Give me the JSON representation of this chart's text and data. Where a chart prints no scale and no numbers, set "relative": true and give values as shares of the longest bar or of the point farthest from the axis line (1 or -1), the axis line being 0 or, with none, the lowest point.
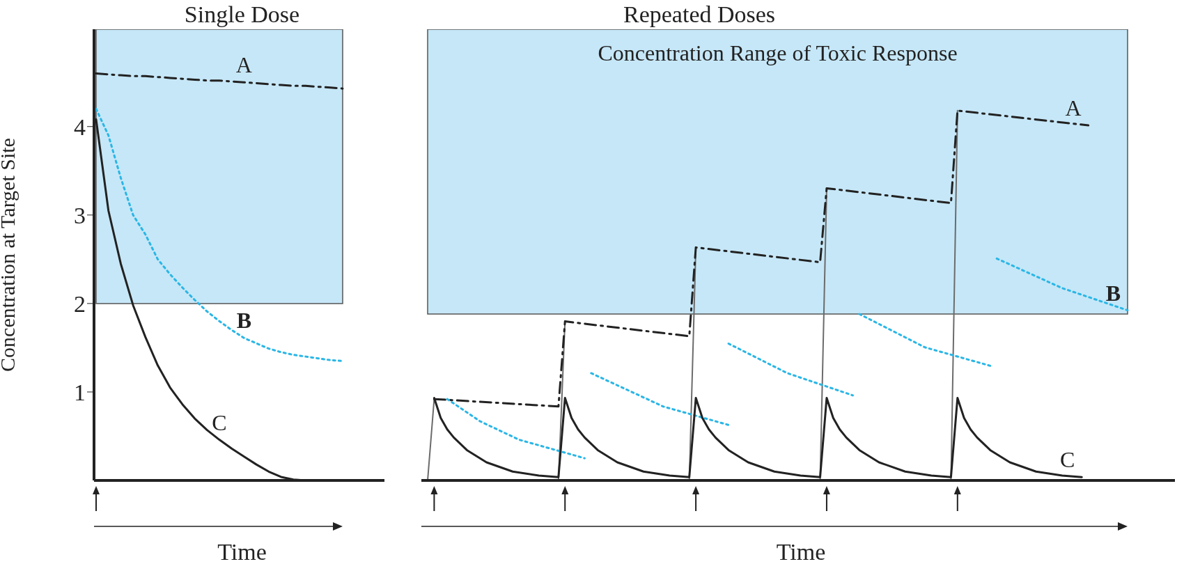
{
  "chart_data": [
    {
      "type": "line",
      "title": "Single Dose",
      "xlabel": "Time",
      "ylabel": "Concentration at Target Site",
      "ylim": [
        0,
        5.1
      ],
      "yticks": [
        1,
        2,
        3,
        4
      ],
      "tick_labels": "y",
      "categories": [
        null,
        null,
        null,
        null,
        null,
        null,
        null,
        null,
        null,
        null,
        null,
        null,
        null,
        null,
        null,
        null,
        null,
        null,
        null,
        null,
        null
      ],
      "bands": [
        {
          "axis": "y",
          "from": 2,
          "to": 5.1,
          "color": "#c6e7f7"
        }
      ],
      "series": [
        {
          "name": "A",
          "color": "#222222",
          "line_style": "dashed",
          "values": [
            4.6,
            4.59,
            4.58,
            4.57,
            4.57,
            4.56,
            4.55,
            4.54,
            4.53,
            4.52,
            4.52,
            4.51,
            4.5,
            4.49,
            4.48,
            4.47,
            4.46,
            4.46,
            4.45,
            4.44,
            4.43
          ]
        },
        {
          "name": "B",
          "color": "#29b6e6",
          "line_style": "dotted",
          "values": [
            4.2,
            3.9,
            3.42,
            3.0,
            2.78,
            2.5,
            2.33,
            2.18,
            2.04,
            1.91,
            1.8,
            1.7,
            1.61,
            1.55,
            1.49,
            1.45,
            1.42,
            1.4,
            1.38,
            1.36,
            1.35
          ]
        },
        {
          "name": "C",
          "color": "#222222",
          "line_style": "solid",
          "values": [
            4.08,
            3.05,
            2.45,
            1.98,
            1.62,
            1.3,
            1.05,
            0.86,
            0.7,
            0.57,
            0.46,
            0.36,
            0.27,
            0.18,
            0.1,
            0.04,
            0.01,
            0,
            null,
            null,
            null
          ]
        }
      ]
    },
    {
      "type": "line",
      "title": "Repeated Doses",
      "xlabel": "Time",
      "relative": true,
      "tick_labels": false,
      "categories": [
        null,
        null,
        null,
        null,
        null,
        null,
        null,
        null,
        null,
        null,
        null,
        null,
        null,
        null,
        null,
        null,
        null,
        null,
        null,
        null,
        null,
        null,
        null,
        null,
        null,
        null,
        null,
        null,
        null,
        null,
        null,
        null,
        null,
        null,
        null,
        null,
        null,
        null,
        null,
        null,
        null,
        null,
        null,
        null,
        null,
        null,
        null,
        null,
        null,
        null,
        null,
        null,
        null,
        null,
        null,
        null,
        null,
        null,
        null,
        null,
        null,
        null,
        null,
        null,
        null,
        null,
        null,
        null,
        null,
        null,
        null,
        null,
        null,
        null,
        null,
        null,
        null,
        null,
        null,
        null,
        null,
        null,
        null,
        null,
        null,
        null,
        null,
        null,
        null,
        null,
        null,
        null,
        null,
        null,
        null,
        null,
        null,
        null,
        null,
        null,
        null,
        null,
        null,
        null,
        null,
        null,
        null,
        null
      ],
      "bands": [
        {
          "axis": "y",
          "from": 0.45,
          "to": 1.22,
          "color": "#c6e7f7",
          "label": "Concentration Range of Toxic Response"
        }
      ],
      "series": [
        {
          "color": "#6b6b6b",
          "line_style": "solid",
          "values": [
            0,
            0.22,
            null,
            null,
            null,
            null,
            null,
            null,
            null,
            null,
            null,
            null,
            null,
            null,
            null,
            null,
            null,
            null,
            null,
            null,
            null,
            null,
            null,
            null,
            null,
            null,
            null,
            null,
            null,
            null,
            null,
            null,
            null,
            null,
            null,
            null,
            null,
            null,
            null,
            null,
            null,
            null,
            null,
            null,
            null,
            null,
            null,
            null,
            null,
            null,
            null,
            null,
            null,
            null,
            null,
            null,
            null,
            null,
            null,
            null,
            null,
            null,
            null,
            null,
            null,
            null,
            null,
            null,
            null,
            null,
            null,
            null,
            null,
            null,
            null,
            null,
            null,
            null,
            null,
            null,
            null,
            null,
            null,
            null,
            null,
            null,
            null,
            null,
            null,
            null,
            null,
            null,
            null,
            null,
            null,
            null,
            null,
            null,
            null,
            null,
            null,
            null,
            null,
            null,
            null,
            null,
            null,
            null
          ]
        },
        {
          "color": "#6b6b6b",
          "line_style": "solid",
          "values": [
            null,
            null,
            null,
            null,
            null,
            null,
            null,
            null,
            null,
            null,
            null,
            null,
            null,
            null,
            null,
            null,
            null,
            null,
            null,
            null,
            0,
            0.43,
            null,
            null,
            null,
            null,
            null,
            null,
            null,
            null,
            null,
            null,
            null,
            null,
            null,
            null,
            null,
            null,
            null,
            null,
            null,
            null,
            null,
            null,
            null,
            null,
            null,
            null,
            null,
            null,
            null,
            null,
            null,
            null,
            null,
            null,
            null,
            null,
            null,
            null,
            null,
            null,
            null,
            null,
            null,
            null,
            null,
            null,
            null,
            null,
            null,
            null,
            null,
            null,
            null,
            null,
            null,
            null,
            null,
            null,
            null,
            null,
            null,
            null,
            null,
            null,
            null,
            null,
            null,
            null,
            null,
            null,
            null,
            null,
            null,
            null,
            null,
            null,
            null,
            null,
            null,
            null,
            null,
            null,
            null,
            null,
            null,
            null
          ]
        },
        {
          "color": "#6b6b6b",
          "line_style": "solid",
          "values": [
            null,
            null,
            null,
            null,
            null,
            null,
            null,
            null,
            null,
            null,
            null,
            null,
            null,
            null,
            null,
            null,
            null,
            null,
            null,
            null,
            null,
            null,
            null,
            null,
            null,
            null,
            null,
            null,
            null,
            null,
            null,
            null,
            null,
            null,
            null,
            null,
            null,
            null,
            null,
            null,
            0,
            0.63,
            null,
            null,
            null,
            null,
            null,
            null,
            null,
            null,
            null,
            null,
            null,
            null,
            null,
            null,
            null,
            null,
            null,
            null,
            null,
            null,
            null,
            null,
            null,
            null,
            null,
            null,
            null,
            null,
            null,
            null,
            null,
            null,
            null,
            null,
            null,
            null,
            null,
            null,
            null,
            null,
            null,
            null,
            null,
            null,
            null,
            null,
            null,
            null,
            null,
            null,
            null,
            null,
            null,
            null,
            null,
            null,
            null,
            null,
            null,
            null,
            null,
            null,
            null,
            null,
            null,
            null
          ]
        },
        {
          "color": "#6b6b6b",
          "line_style": "solid",
          "values": [
            null,
            null,
            null,
            null,
            null,
            null,
            null,
            null,
            null,
            null,
            null,
            null,
            null,
            null,
            null,
            null,
            null,
            null,
            null,
            null,
            null,
            null,
            null,
            null,
            null,
            null,
            null,
            null,
            null,
            null,
            null,
            null,
            null,
            null,
            null,
            null,
            null,
            null,
            null,
            null,
            null,
            null,
            null,
            null,
            null,
            null,
            null,
            null,
            null,
            null,
            null,
            null,
            null,
            null,
            null,
            null,
            null,
            null,
            null,
            null,
            0,
            0.79,
            null,
            null,
            null,
            null,
            null,
            null,
            null,
            null,
            null,
            null,
            null,
            null,
            null,
            null,
            null,
            null,
            null,
            null,
            null,
            null,
            null,
            null,
            null,
            null,
            null,
            null,
            null,
            null,
            null,
            null,
            null,
            null,
            null,
            null,
            null,
            null,
            null,
            null,
            null,
            null,
            null,
            null,
            null,
            null,
            null,
            null
          ]
        },
        {
          "color": "#6b6b6b",
          "line_style": "solid",
          "values": [
            null,
            null,
            null,
            null,
            null,
            null,
            null,
            null,
            null,
            null,
            null,
            null,
            null,
            null,
            null,
            null,
            null,
            null,
            null,
            null,
            null,
            null,
            null,
            null,
            null,
            null,
            null,
            null,
            null,
            null,
            null,
            null,
            null,
            null,
            null,
            null,
            null,
            null,
            null,
            null,
            null,
            null,
            null,
            null,
            null,
            null,
            null,
            null,
            null,
            null,
            null,
            null,
            null,
            null,
            null,
            null,
            null,
            null,
            null,
            null,
            null,
            null,
            null,
            null,
            null,
            null,
            null,
            null,
            null,
            null,
            null,
            null,
            null,
            null,
            null,
            null,
            null,
            null,
            null,
            null,
            0,
            1,
            null,
            null,
            null,
            null,
            null,
            null,
            null,
            null,
            null,
            null,
            null,
            null,
            null,
            null,
            null,
            null,
            null,
            null,
            null,
            null,
            null,
            null,
            null,
            null,
            null,
            null
          ]
        },
        {
          "name": "A",
          "color": "#222222",
          "line_style": "dashed",
          "values": [
            null,
            0.22,
            null,
            null,
            null,
            null,
            null,
            null,
            null,
            null,
            null,
            null,
            null,
            null,
            null,
            null,
            null,
            null,
            null,
            null,
            0.2,
            0.43,
            null,
            null,
            null,
            null,
            null,
            null,
            null,
            null,
            null,
            null,
            null,
            null,
            null,
            null,
            null,
            null,
            null,
            null,
            0.39,
            0.63,
            null,
            null,
            null,
            null,
            null,
            null,
            null,
            null,
            null,
            null,
            null,
            null,
            null,
            null,
            null,
            null,
            null,
            null,
            0.59,
            0.79,
            null,
            null,
            null,
            null,
            null,
            null,
            null,
            null,
            null,
            null,
            null,
            null,
            null,
            null,
            null,
            null,
            null,
            null,
            0.75,
            1,
            null,
            null,
            null,
            null,
            null,
            null,
            null,
            null,
            null,
            null,
            null,
            null,
            null,
            null,
            null,
            null,
            null,
            null,
            null,
            0.96,
            null,
            null,
            null,
            null,
            null,
            null
          ]
        },
        {
          "color": "#29b6e6",
          "line_style": "dotted",
          "values": [
            null,
            null,
            null,
            0.22,
            null,
            null,
            null,
            null,
            0.16,
            null,
            null,
            null,
            null,
            null,
            0.11,
            null,
            null,
            null,
            null,
            null,
            null,
            null,
            null,
            null,
            0.06,
            null,
            null,
            null,
            null,
            null,
            null,
            null,
            null,
            null,
            null,
            null,
            null,
            null,
            null,
            null,
            null,
            null,
            null,
            null,
            null,
            null,
            null,
            null,
            null,
            null,
            null,
            null,
            null,
            null,
            null,
            null,
            null,
            null,
            null,
            null,
            null,
            null,
            null,
            null,
            null,
            null,
            null,
            null,
            null,
            null,
            null,
            null,
            null,
            null,
            null,
            null,
            null,
            null,
            null,
            null,
            null,
            null,
            null,
            null,
            null,
            null,
            null,
            null,
            null,
            null,
            null,
            null,
            null,
            null,
            null,
            null,
            null,
            null,
            null,
            null,
            null,
            null,
            null,
            null,
            null,
            null,
            null,
            null
          ]
        },
        {
          "color": "#29b6e6",
          "line_style": "dotted",
          "values": [
            null,
            null,
            null,
            null,
            null,
            null,
            null,
            null,
            null,
            null,
            null,
            null,
            null,
            null,
            null,
            null,
            null,
            null,
            null,
            null,
            null,
            null,
            null,
            null,
            null,
            0.29,
            null,
            null,
            null,
            null,
            null,
            null,
            null,
            null,
            null,
            null,
            0.2,
            null,
            null,
            null,
            null,
            null,
            null,
            null,
            null,
            null,
            0.15,
            null,
            null,
            null,
            null,
            null,
            null,
            null,
            null,
            null,
            null,
            null,
            null,
            null,
            null,
            null,
            null,
            null,
            null,
            null,
            null,
            null,
            null,
            null,
            null,
            null,
            null,
            null,
            null,
            null,
            null,
            null,
            null,
            null,
            null,
            null,
            null,
            null,
            null,
            null,
            null,
            null,
            null,
            null,
            null,
            null,
            null,
            null,
            null,
            null,
            null,
            null,
            null,
            null,
            null,
            null,
            null,
            null,
            null,
            null,
            null,
            null
          ]
        },
        {
          "color": "#29b6e6",
          "line_style": "dotted",
          "values": [
            null,
            null,
            null,
            null,
            null,
            null,
            null,
            null,
            null,
            null,
            null,
            null,
            null,
            null,
            null,
            null,
            null,
            null,
            null,
            null,
            null,
            null,
            null,
            null,
            null,
            null,
            null,
            null,
            null,
            null,
            null,
            null,
            null,
            null,
            null,
            null,
            null,
            null,
            null,
            null,
            null,
            null,
            null,
            null,
            null,
            null,
            0.37,
            null,
            null,
            null,
            null,
            null,
            null,
            null,
            null,
            0.29,
            null,
            null,
            null,
            null,
            null,
            null,
            null,
            null,
            null,
            0.23,
            null,
            null,
            null,
            null,
            null,
            null,
            null,
            null,
            null,
            null,
            null,
            null,
            null,
            null,
            null,
            null,
            null,
            null,
            null,
            null,
            null,
            null,
            null,
            null,
            null,
            null,
            null,
            null,
            null,
            null,
            null,
            null,
            null,
            null,
            null,
            null,
            null,
            null,
            null,
            null,
            null,
            null
          ]
        },
        {
          "color": "#29b6e6",
          "line_style": "dotted",
          "values": [
            null,
            null,
            null,
            null,
            null,
            null,
            null,
            null,
            null,
            null,
            null,
            null,
            null,
            null,
            null,
            null,
            null,
            null,
            null,
            null,
            null,
            null,
            null,
            null,
            null,
            null,
            null,
            null,
            null,
            null,
            null,
            null,
            null,
            null,
            null,
            null,
            null,
            null,
            null,
            null,
            null,
            null,
            null,
            null,
            null,
            null,
            null,
            null,
            null,
            null,
            null,
            null,
            null,
            null,
            null,
            null,
            null,
            null,
            null,
            null,
            null,
            null,
            null,
            null,
            null,
            null,
            0.45,
            null,
            null,
            null,
            null,
            null,
            null,
            null,
            null,
            null,
            0.36,
            null,
            null,
            null,
            null,
            null,
            null,
            null,
            null,
            null,
            0.31,
            null,
            null,
            null,
            null,
            null,
            null,
            null,
            null,
            null,
            null,
            null,
            null,
            null,
            null,
            null,
            null,
            null,
            null,
            null,
            null,
            null
          ]
        },
        {
          "name": "B",
          "color": "#29b6e6",
          "line_style": "dotted",
          "values": [
            null,
            null,
            null,
            null,
            null,
            null,
            null,
            null,
            null,
            null,
            null,
            null,
            null,
            null,
            null,
            null,
            null,
            null,
            null,
            null,
            null,
            null,
            null,
            null,
            null,
            null,
            null,
            null,
            null,
            null,
            null,
            null,
            null,
            null,
            null,
            null,
            null,
            null,
            null,
            null,
            null,
            null,
            null,
            null,
            null,
            null,
            null,
            null,
            null,
            null,
            null,
            null,
            null,
            null,
            null,
            null,
            null,
            null,
            null,
            null,
            null,
            null,
            null,
            null,
            null,
            null,
            null,
            null,
            null,
            null,
            null,
            null,
            null,
            null,
            null,
            null,
            null,
            null,
            null,
            null,
            null,
            null,
            null,
            null,
            null,
            null,
            null,
            0.6,
            null,
            null,
            null,
            null,
            null,
            null,
            null,
            null,
            null,
            0.52,
            null,
            null,
            null,
            null,
            null,
            null,
            null,
            null,
            null,
            0.46
          ]
        },
        {
          "name": "C",
          "color": "#222222",
          "line_style": "solid",
          "values": [
            null,
            0.223,
            0.169,
            0.138,
            0.116,
            null,
            0.082,
            null,
            null,
            0.049,
            null,
            null,
            null,
            0.024,
            null,
            null,
            null,
            0.013,
            null,
            null,
            0.009,
            0.223,
            0.169,
            0.138,
            0.116,
            null,
            0.082,
            null,
            null,
            0.049,
            null,
            null,
            null,
            0.024,
            null,
            null,
            null,
            0.013,
            null,
            null,
            0.009,
            0.223,
            0.169,
            0.138,
            0.116,
            null,
            0.082,
            null,
            null,
            0.049,
            null,
            null,
            null,
            0.024,
            null,
            null,
            null,
            0.013,
            null,
            null,
            0.009,
            0.223,
            0.169,
            0.138,
            0.116,
            null,
            0.082,
            null,
            null,
            0.049,
            null,
            null,
            null,
            0.024,
            null,
            null,
            null,
            0.013,
            null,
            null,
            0.009,
            0.223,
            0.169,
            0.138,
            0.116,
            null,
            0.082,
            null,
            null,
            0.049,
            null,
            null,
            null,
            0.024,
            null,
            null,
            null,
            0.013,
            null,
            null,
            0.009,
            null,
            null,
            null,
            null,
            null,
            null,
            null
          ]
        }
      ]
    }
  ]
}
